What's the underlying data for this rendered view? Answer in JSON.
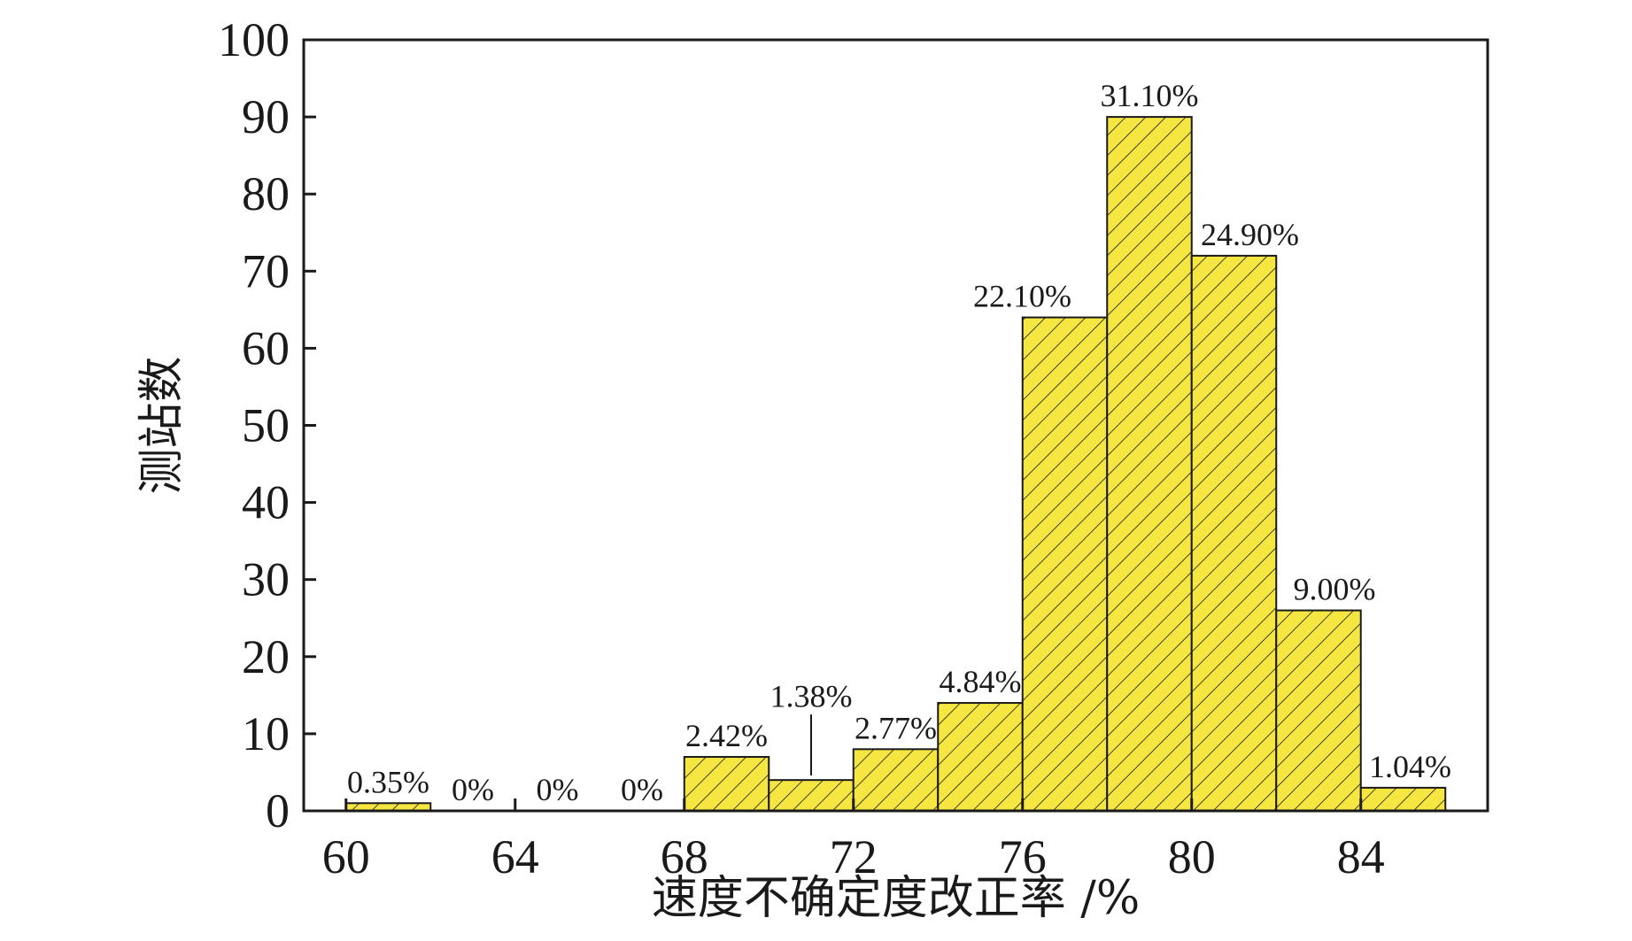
{
  "chart_data": {
    "type": "bar",
    "xlabel": "速度不确定度改正率 /%",
    "ylabel": "测站数",
    "xlim": [
      59,
      87
    ],
    "ylim": [
      0,
      100
    ],
    "xticks": [
      "60",
      "64",
      "68",
      "72",
      "76",
      "80",
      "84"
    ],
    "yticks": [
      "0",
      "10",
      "20",
      "30",
      "40",
      "50",
      "60",
      "70",
      "80",
      "90",
      "100"
    ],
    "bin_width": 2,
    "bins": [
      {
        "start": 60,
        "value": 1,
        "label": "0.35%"
      },
      {
        "start": 62,
        "value": 0,
        "label": "0%"
      },
      {
        "start": 64,
        "value": 0,
        "label": "0%"
      },
      {
        "start": 66,
        "value": 0,
        "label": "0%"
      },
      {
        "start": 68,
        "value": 7,
        "label": "2.42%"
      },
      {
        "start": 70,
        "value": 4,
        "label": "1.38%"
      },
      {
        "start": 72,
        "value": 8,
        "label": "2.77%"
      },
      {
        "start": 74,
        "value": 14,
        "label": "4.84%"
      },
      {
        "start": 76,
        "value": 64,
        "label": "22.10%"
      },
      {
        "start": 78,
        "value": 90,
        "label": "31.10%"
      },
      {
        "start": 80,
        "value": 72,
        "label": "24.90%"
      },
      {
        "start": 82,
        "value": 26,
        "label": "9.00%"
      },
      {
        "start": 84,
        "value": 3,
        "label": "1.04%"
      }
    ],
    "bar_fill": "#f5e642",
    "bar_stroke": "#1a1a1a",
    "hatch": "diagonal",
    "grid": false,
    "legend": false
  }
}
